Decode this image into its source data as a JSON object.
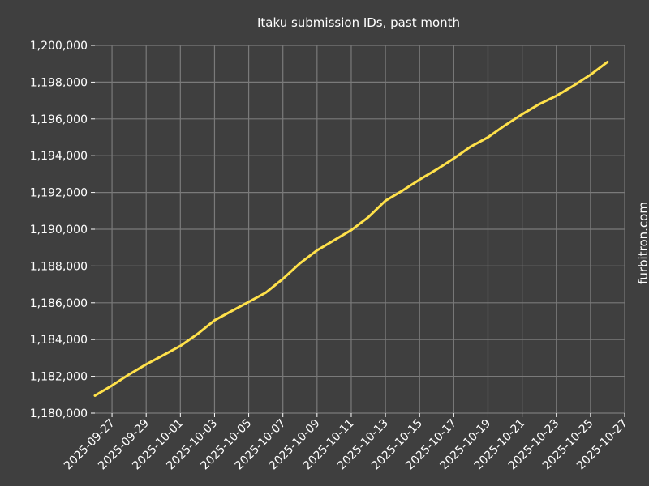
{
  "watermark": "furbitron.com",
  "colors": {
    "background": "#3f3f3f",
    "grid": "#7a7a7a",
    "text": "#ffffff",
    "line": "#ffe14a"
  },
  "chart_data": {
    "type": "line",
    "title": "Itaku submission IDs, past month",
    "xlabel": "",
    "ylabel": "",
    "grid": true,
    "legend": "none",
    "xlim": [
      "2025-09-26",
      "2025-10-27"
    ],
    "ylim": [
      1180000,
      1200000
    ],
    "x_ticks": [
      "2025-09-27",
      "2025-09-29",
      "2025-10-01",
      "2025-10-03",
      "2025-10-05",
      "2025-10-07",
      "2025-10-09",
      "2025-10-11",
      "2025-10-13",
      "2025-10-15",
      "2025-10-17",
      "2025-10-19",
      "2025-10-21",
      "2025-10-23",
      "2025-10-25",
      "2025-10-27"
    ],
    "y_ticks": [
      1180000,
      1182000,
      1184000,
      1186000,
      1188000,
      1190000,
      1192000,
      1194000,
      1196000,
      1198000,
      1200000
    ],
    "y_tick_labels": [
      "1,180,000",
      "1,182,000",
      "1,184,000",
      "1,186,000",
      "1,188,000",
      "1,190,000",
      "1,192,000",
      "1,194,000",
      "1,196,000",
      "1,198,000",
      "1,200,000"
    ],
    "series": [
      {
        "color": "#ffe14a",
        "x": [
          "2025-09-26",
          "2025-09-27",
          "2025-09-28",
          "2025-09-29",
          "2025-09-30",
          "2025-10-01",
          "2025-10-02",
          "2025-10-03",
          "2025-10-04",
          "2025-10-05",
          "2025-10-06",
          "2025-10-07",
          "2025-10-08",
          "2025-10-09",
          "2025-10-10",
          "2025-10-11",
          "2025-10-12",
          "2025-10-13",
          "2025-10-14",
          "2025-10-15",
          "2025-10-16",
          "2025-10-17",
          "2025-10-18",
          "2025-10-19",
          "2025-10-20",
          "2025-10-21",
          "2025-10-22",
          "2025-10-23",
          "2025-10-24",
          "2025-10-25",
          "2025-10-26"
        ],
        "y": [
          1180950,
          1181500,
          1182100,
          1182650,
          1183150,
          1183650,
          1184300,
          1185050,
          1185550,
          1186050,
          1186550,
          1187300,
          1188150,
          1188850,
          1189400,
          1189950,
          1190650,
          1191550,
          1192100,
          1192700,
          1193250,
          1193850,
          1194500,
          1195000,
          1195650,
          1196250,
          1196800,
          1197250,
          1197800,
          1198400,
          1199100
        ]
      }
    ]
  }
}
